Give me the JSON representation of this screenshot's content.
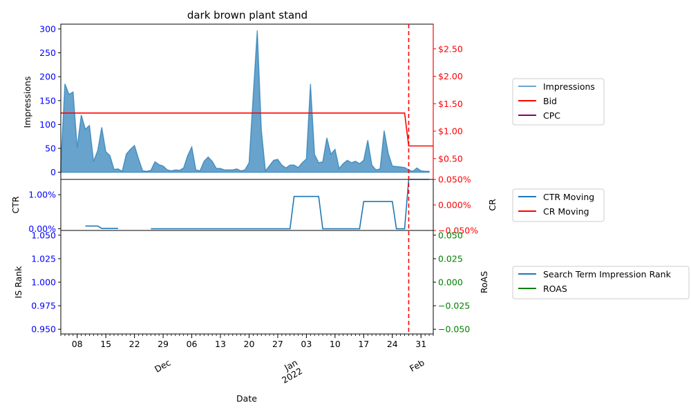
{
  "colors": {
    "impressions": "#1f77b4",
    "bid": "#ff0000",
    "cpc": "#800080",
    "ctr": "#1f77b4",
    "cr": "#ff0000",
    "isrank": "#1f77b4",
    "roas": "#008000",
    "vline": "#ff0000",
    "left_tick": "#0000ff",
    "right_tick_red": "#ff0000",
    "right_tick_green": "#008000"
  },
  "chart_data": [
    {
      "type": "area",
      "title": "dark brown plant stand",
      "ylabel": "Impressions",
      "ylim": [
        -15,
        310
      ],
      "yticks": [
        0,
        50,
        100,
        150,
        200,
        250,
        300
      ],
      "y2lim": [
        0.12,
        2.95
      ],
      "y2ticks": [
        0.5,
        1.0,
        1.5,
        2.0,
        2.5
      ],
      "y2ticklabels": [
        "$0.50",
        "$1.00",
        "$1.50",
        "$2.00",
        "$2.50"
      ],
      "legend": [
        "Impressions",
        "Bid",
        "CPC"
      ],
      "legend_placement": "outside-right",
      "series": [
        {
          "name": "Impressions",
          "points": [
            [
              0,
              15
            ],
            [
              1,
              185
            ],
            [
              2,
              163
            ],
            [
              3,
              168
            ],
            [
              4,
              52
            ],
            [
              5,
              120
            ],
            [
              6,
              90
            ],
            [
              7,
              98
            ],
            [
              8,
              23
            ],
            [
              9,
              45
            ],
            [
              10,
              94
            ],
            [
              11,
              43
            ],
            [
              12,
              35
            ],
            [
              13,
              6
            ],
            [
              14,
              7
            ],
            [
              15,
              2
            ],
            [
              16,
              38
            ],
            [
              17,
              48
            ],
            [
              18,
              56
            ],
            [
              19,
              28
            ],
            [
              20,
              3
            ],
            [
              21,
              2
            ],
            [
              22,
              4
            ],
            [
              23,
              22
            ],
            [
              24,
              16
            ],
            [
              25,
              13
            ],
            [
              26,
              5
            ],
            [
              27,
              3
            ],
            [
              28,
              5
            ],
            [
              29,
              4
            ],
            [
              30,
              9
            ],
            [
              31,
              35
            ],
            [
              32,
              53
            ],
            [
              33,
              5
            ],
            [
              34,
              3
            ],
            [
              35,
              23
            ],
            [
              36,
              32
            ],
            [
              37,
              23
            ],
            [
              38,
              8
            ],
            [
              39,
              8
            ],
            [
              40,
              5
            ],
            [
              41,
              5
            ],
            [
              42,
              5
            ],
            [
              43,
              7
            ],
            [
              44,
              3
            ],
            [
              45,
              5
            ],
            [
              46,
              20
            ],
            [
              47,
              160
            ],
            [
              48,
              297
            ],
            [
              49,
              88
            ],
            [
              50,
              3
            ],
            [
              51,
              14
            ],
            [
              52,
              25
            ],
            [
              53,
              27
            ],
            [
              54,
              15
            ],
            [
              55,
              9
            ],
            [
              56,
              15
            ],
            [
              57,
              15
            ],
            [
              58,
              10
            ],
            [
              59,
              20
            ],
            [
              60,
              28
            ],
            [
              61,
              185
            ],
            [
              62,
              37
            ],
            [
              63,
              20
            ],
            [
              64,
              22
            ],
            [
              65,
              72
            ],
            [
              66,
              38
            ],
            [
              67,
              48
            ],
            [
              68,
              8
            ],
            [
              69,
              18
            ],
            [
              70,
              25
            ],
            [
              71,
              20
            ],
            [
              72,
              23
            ],
            [
              73,
              18
            ],
            [
              74,
              25
            ],
            [
              75,
              67
            ],
            [
              76,
              15
            ],
            [
              77,
              5
            ],
            [
              78,
              7
            ],
            [
              79,
              87
            ],
            [
              80,
              40
            ],
            [
              81,
              13
            ],
            [
              82,
              12
            ],
            [
              83,
              11
            ],
            [
              84,
              10
            ],
            [
              85,
              5
            ],
            [
              86,
              2
            ],
            [
              87,
              9
            ],
            [
              88,
              3
            ],
            [
              89,
              2
            ],
            [
              90,
              2
            ]
          ]
        },
        {
          "name": "Bid",
          "points": [
            [
              0,
              1.33
            ],
            [
              84,
              1.33
            ],
            [
              85,
              0.73
            ],
            [
              91,
              0.73
            ]
          ]
        },
        {
          "name": "CPC",
          "points": []
        }
      ]
    },
    {
      "type": "line",
      "ylabel": "CTR",
      "ylim": [
        -0.0005,
        0.0145
      ],
      "yticks": [
        0,
        0.01
      ],
      "yticklabels": [
        "0.00%",
        "1.00%"
      ],
      "y2label": "CR",
      "y2lim": [
        -0.05,
        0.05
      ],
      "y2ticks": [
        -0.05,
        0.0,
        0.05
      ],
      "y2ticklabels": [
        "−0.050%",
        "0.000%",
        "0.050%"
      ],
      "legend": [
        "CTR Moving",
        "CR Moving"
      ],
      "legend_placement": "outside-right",
      "series": [
        {
          "name": "CTR Moving",
          "segments": [
            [
              [
                6,
                0.0008
              ],
              [
                9,
                0.0008
              ],
              [
                10,
                0.0001
              ],
              [
                14,
                0.0001
              ]
            ],
            [
              [
                22,
                0.0
              ],
              [
                56,
                0.0
              ],
              [
                57,
                0.0095
              ],
              [
                63,
                0.0095
              ],
              [
                64,
                0.0
              ],
              [
                73,
                0.0
              ],
              [
                74,
                0.008
              ],
              [
                81,
                0.008
              ],
              [
                82,
                0.0
              ],
              [
                84,
                0.0
              ],
              [
                85,
                0.0145
              ],
              [
                90,
                0.0145
              ]
            ]
          ]
        },
        {
          "name": "CR Moving",
          "segments": []
        }
      ]
    },
    {
      "type": "line",
      "ylabel": "IS Rank",
      "ylim": [
        0.945,
        1.055
      ],
      "yticks": [
        0.95,
        0.975,
        1.0,
        1.025,
        1.05
      ],
      "yticklabels": [
        "0.950",
        "0.975",
        "1.000",
        "1.025",
        "1.050"
      ],
      "y2label": "RoAS",
      "y2lim": [
        -0.055,
        0.055
      ],
      "y2ticks": [
        -0.05,
        -0.025,
        0.0,
        0.025,
        0.05
      ],
      "y2ticklabels": [
        "−0.050",
        "−0.025",
        "0.000",
        "0.025",
        "0.050"
      ],
      "legend": [
        "Search Term Impression Rank",
        "ROAS"
      ],
      "legend_placement": "outside-right",
      "series": [
        {
          "name": "Search Term Impression Rank",
          "points": []
        },
        {
          "name": "ROAS",
          "points": []
        }
      ]
    }
  ],
  "x_axis": {
    "label": "Date",
    "xlim": [
      0,
      91
    ],
    "day_ticks": [
      {
        "x": 4,
        "label": "08"
      },
      {
        "x": 11,
        "label": "15"
      },
      {
        "x": 18,
        "label": "22"
      },
      {
        "x": 25,
        "label": "29"
      },
      {
        "x": 32,
        "label": "06"
      },
      {
        "x": 39,
        "label": "13"
      },
      {
        "x": 46,
        "label": "20"
      },
      {
        "x": 53,
        "label": "27"
      },
      {
        "x": 60,
        "label": "03"
      },
      {
        "x": 67,
        "label": "10"
      },
      {
        "x": 74,
        "label": "17"
      },
      {
        "x": 81,
        "label": "24"
      },
      {
        "x": 88,
        "label": "31"
      }
    ],
    "month_ticks": [
      {
        "x": 26,
        "label": "Dec"
      },
      {
        "x": 57,
        "label": "Jan\n2022"
      },
      {
        "x": 88,
        "label": "Feb"
      }
    ],
    "vline_x": 85
  }
}
